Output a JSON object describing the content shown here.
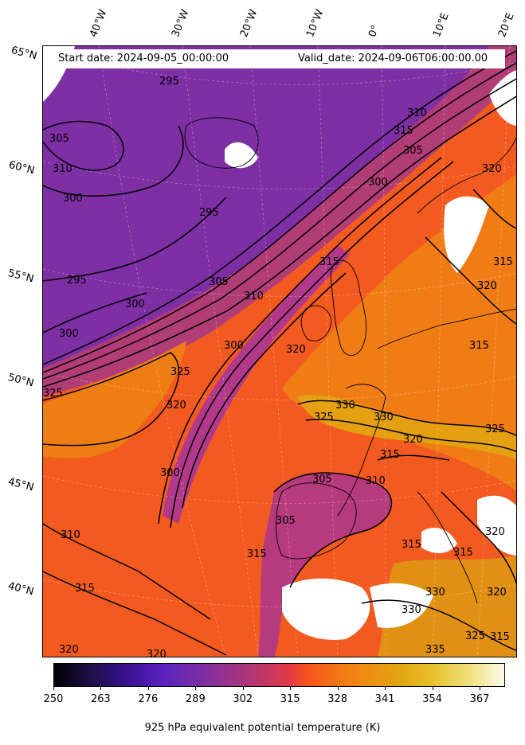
{
  "header": {
    "start_date": "Start date: 2024-09-05_00:00:00",
    "valid_date": "Valid_date: 2024-09-06T06:00:00.00"
  },
  "map": {
    "longitude_labels": [
      "40°W",
      "30°W",
      "20°W",
      "10°W",
      "0°",
      "10°E",
      "20°E"
    ],
    "latitude_labels": [
      "65°N",
      "60°N",
      "55°N",
      "50°N",
      "45°N",
      "40°N"
    ],
    "contour_labels": [
      "295",
      "300",
      "305",
      "310",
      "315",
      "320",
      "325",
      "330",
      "335"
    ],
    "colors": {
      "cold": "#7a2ea5",
      "mid": "#e0384c",
      "warm": "#f47215",
      "hot": "#e4a10f",
      "missing": "#ffffff"
    }
  },
  "colorbar": {
    "ticks": [
      "250",
      "263",
      "276",
      "289",
      "302",
      "315",
      "328",
      "341",
      "354",
      "367"
    ],
    "title": "925 hPa equivalent potential temperature (K)",
    "min": 250,
    "max": 374
  }
}
